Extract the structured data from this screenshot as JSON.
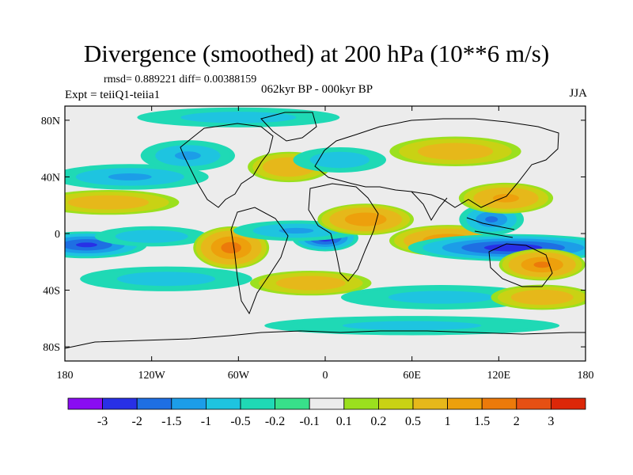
{
  "title": "Divergence (smoothed) at 200 hPa (10**6 m/s)",
  "stats": "rmsd= 0.889221 diff= 0.00388159",
  "experiment": "Expt = teiiQ1-teiia1",
  "period": "062kyr BP - 000kyr BP",
  "season": "JJA",
  "map": {
    "lon_range": [
      -180,
      180
    ],
    "lat_range": [
      -90,
      90
    ],
    "lon_ticks": [
      {
        "value": -180,
        "label": "180"
      },
      {
        "value": -120,
        "label": "120W"
      },
      {
        "value": -60,
        "label": "60W"
      },
      {
        "value": 0,
        "label": "0"
      },
      {
        "value": 60,
        "label": "60E"
      },
      {
        "value": 120,
        "label": "120E"
      },
      {
        "value": 180,
        "label": "180"
      }
    ],
    "lat_ticks": [
      {
        "value": 80,
        "label": "80N"
      },
      {
        "value": 40,
        "label": "40N"
      },
      {
        "value": 0,
        "label": "0"
      },
      {
        "value": -40,
        "label": "40S"
      },
      {
        "value": -80,
        "label": "80S"
      }
    ],
    "features": [
      {
        "name": "east-pacific-convergence",
        "lon": -165,
        "lat": -8,
        "rlon": 22,
        "rlat": 5,
        "value": -2.6
      },
      {
        "name": "central-pacific-convergence",
        "lon": -120,
        "lat": -2,
        "rlon": 22,
        "rlat": 4,
        "value": -1.0
      },
      {
        "name": "south-america-divergence",
        "lon": -65,
        "lat": -10,
        "rlon": 14,
        "rlat": 8,
        "value": 2.0
      },
      {
        "name": "atlantic-convergence-core",
        "lon": 0,
        "lat": -3,
        "rlon": 12,
        "rlat": 5,
        "value": -3.0
      },
      {
        "name": "atlantic-convergence-band",
        "lon": -20,
        "lat": 2,
        "rlon": 24,
        "rlat": 4,
        "value": -1.2
      },
      {
        "name": "africa-divergence",
        "lon": 28,
        "lat": 10,
        "rlon": 18,
        "rlat": 6,
        "value": 1.6
      },
      {
        "name": "indian-ocean-divergence",
        "lon": 85,
        "lat": -5,
        "rlon": 22,
        "rlat": 6,
        "value": 1.6
      },
      {
        "name": "maritime-convergence",
        "lon": 130,
        "lat": -10,
        "rlon": 38,
        "rlat": 5,
        "value": -3.0
      },
      {
        "name": "west-pacific-divergence",
        "lon": 150,
        "lat": -22,
        "rlon": 16,
        "rlat": 6,
        "value": 1.8
      },
      {
        "name": "asia-convergence",
        "lon": 115,
        "lat": 10,
        "rlon": 12,
        "rlat": 6,
        "value": -1.8
      },
      {
        "name": "asia-divergence",
        "lon": 125,
        "lat": 25,
        "rlon": 18,
        "rlat": 6,
        "value": 1.2
      },
      {
        "name": "north-pacific-convergence",
        "lon": -135,
        "lat": 40,
        "rlon": 30,
        "rlat": 5,
        "value": -1.2
      },
      {
        "name": "north-pacific-divergence",
        "lon": -150,
        "lat": 22,
        "rlon": 28,
        "rlat": 5,
        "value": 0.8
      },
      {
        "name": "north-america-convergence",
        "lon": -95,
        "lat": 55,
        "rlon": 18,
        "rlat": 6,
        "value": -1.2
      },
      {
        "name": "north-atlantic-divergence",
        "lon": -25,
        "lat": 47,
        "rlon": 16,
        "rlat": 6,
        "value": 1.0
      },
      {
        "name": "europe-convergence",
        "lon": 10,
        "lat": 52,
        "rlon": 18,
        "rlat": 5,
        "value": -1.0
      },
      {
        "name": "siberia-divergence",
        "lon": 90,
        "lat": 58,
        "rlon": 26,
        "rlat": 6,
        "value": 0.8
      },
      {
        "name": "arctic-convergence",
        "lon": -60,
        "lat": 82,
        "rlon": 40,
        "rlat": 4,
        "value": -0.8
      },
      {
        "name": "south-pacific-band",
        "lon": -110,
        "lat": -32,
        "rlon": 34,
        "rlat": 5,
        "value": -0.8
      },
      {
        "name": "south-atlantic-divergence",
        "lon": -10,
        "lat": -35,
        "rlon": 24,
        "rlat": 5,
        "value": 0.8
      },
      {
        "name": "southern-ocean-band",
        "lon": 80,
        "lat": -45,
        "rlon": 40,
        "rlat": 5,
        "value": -0.7
      },
      {
        "name": "antarctic-band",
        "lon": 60,
        "lat": -65,
        "rlon": 60,
        "rlat": 4,
        "value": -0.6
      },
      {
        "name": "south-indian-divergence",
        "lon": 150,
        "lat": -45,
        "rlon": 20,
        "rlat": 5,
        "value": 0.9
      }
    ]
  },
  "colorbar": {
    "colors": [
      "#8a0cf2",
      "#2830e6",
      "#1e6fe3",
      "#1c9de8",
      "#1ec4e0",
      "#1fd9b5",
      "#38e08a",
      "#ececec",
      "#9be01e",
      "#c9d214",
      "#e6b81a",
      "#eda00c",
      "#ec7a0a",
      "#e65013",
      "#dc2708"
    ],
    "labels": [
      "-3",
      "-2",
      "-1.5",
      "-1",
      "-0.5",
      "-0.2",
      "-0.1",
      "0.1",
      "0.2",
      "0.5",
      "1",
      "1.5",
      "2",
      "3"
    ]
  }
}
